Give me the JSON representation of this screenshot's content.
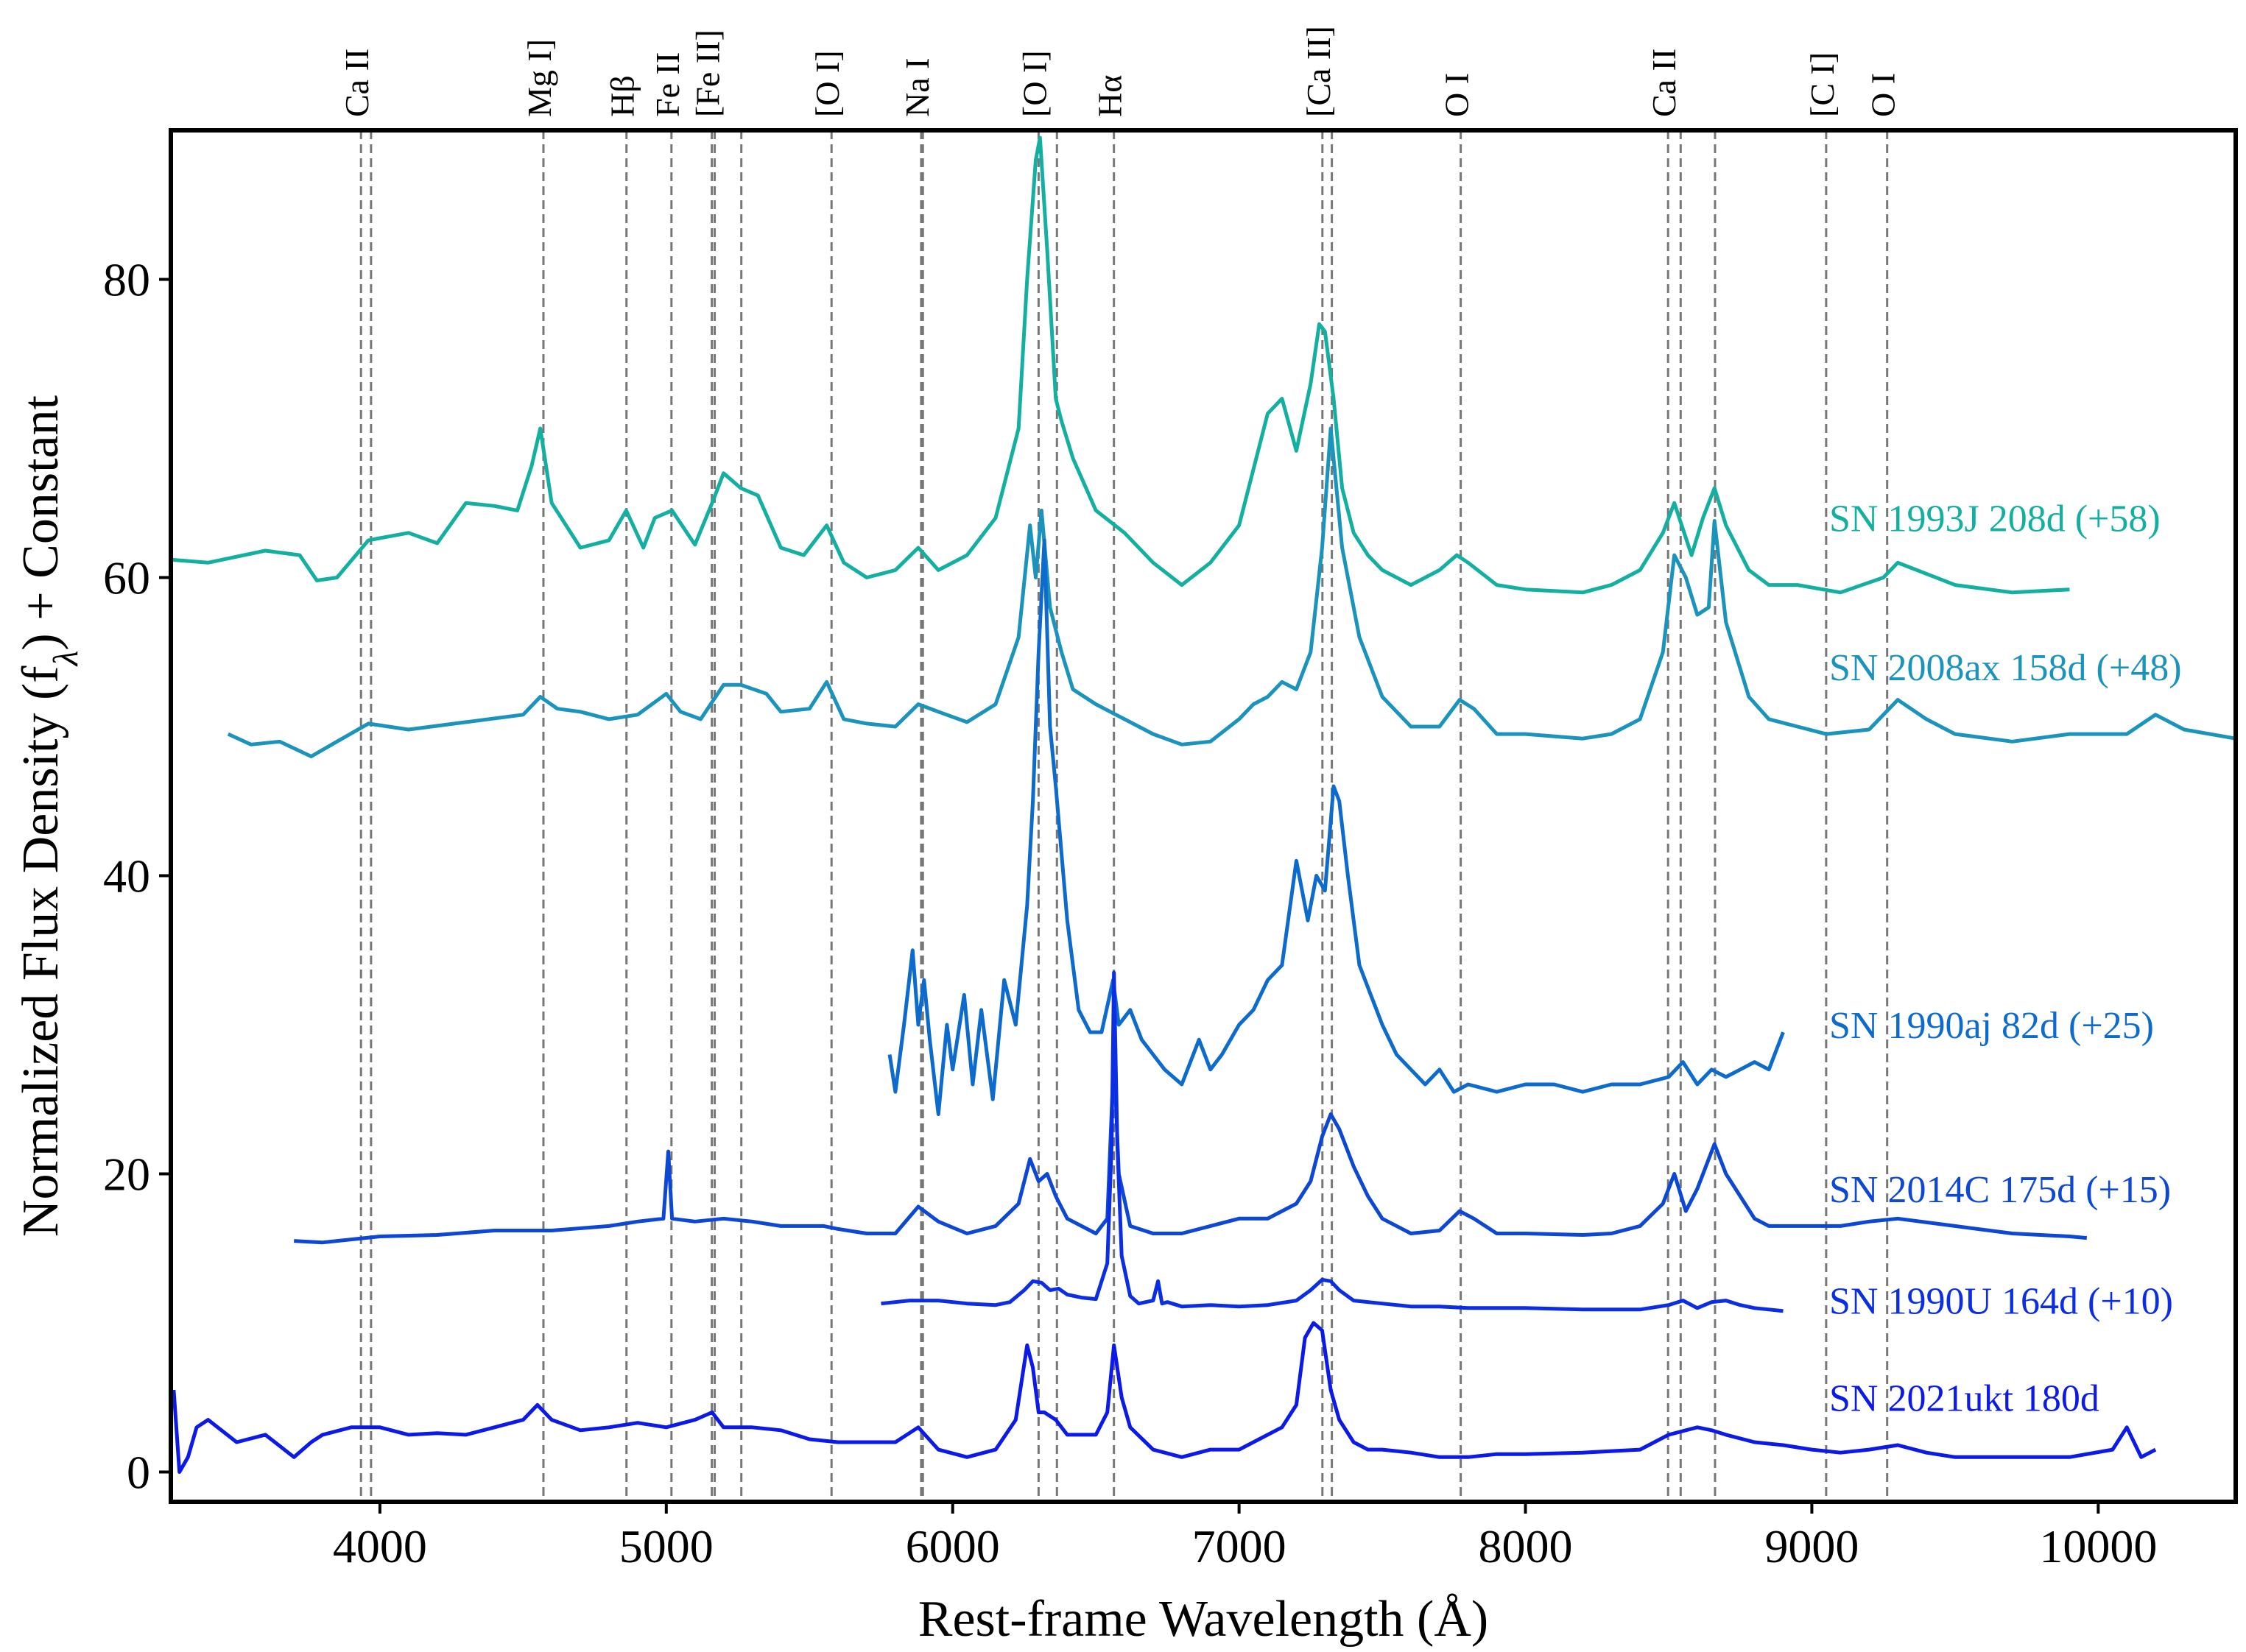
{
  "chart_data": {
    "type": "line",
    "title": "",
    "xlabel": "Rest-frame Wavelength (Å)",
    "ylabel": "Normalized Flux Density (f",
    "ylabel_sub": "λ",
    "ylabel_suffix": ") + Constant",
    "xlim": [
      3270,
      10480
    ],
    "ylim": [
      -2,
      90
    ],
    "xticks": [
      4000,
      5000,
      6000,
      7000,
      8000,
      9000,
      10000
    ],
    "yticks": [
      0,
      20,
      40,
      60,
      80
    ],
    "grid": false,
    "lines": [
      {
        "label": "Ca II",
        "x": [
          3934,
          3969
        ]
      },
      {
        "label": "Mg I]",
        "x": [
          4571
        ]
      },
      {
        "label": "Hβ",
        "x": [
          4861
        ]
      },
      {
        "label": "Fe II",
        "x": [
          5018,
          5169
        ]
      },
      {
        "label": "[Fe II]",
        "x": [
          5159,
          5262
        ]
      },
      {
        "label": "[O I]",
        "x": [
          5577
        ]
      },
      {
        "label": "Na I",
        "x": [
          5890,
          5896
        ]
      },
      {
        "label": "[O I]",
        "x": [
          6300,
          6364
        ]
      },
      {
        "label": "Hα",
        "x": [
          6563
        ]
      },
      {
        "label": "[Ca II]",
        "x": [
          7291,
          7324
        ]
      },
      {
        "label": "O I",
        "x": [
          7774
        ]
      },
      {
        "label": "Ca II",
        "x": [
          8498,
          8542,
          8662
        ]
      },
      {
        "label": "[C I]",
        "x": [
          9050
        ]
      },
      {
        "label": "O I",
        "x": [
          9263
        ]
      }
    ],
    "series": [
      {
        "name": "SN 1993J 208d (+58)",
        "color": "#13b0a2",
        "x": [
          3270,
          3400,
          3600,
          3720,
          3780,
          3850,
          3960,
          4100,
          4200,
          4300,
          4400,
          4480,
          4530,
          4560,
          4600,
          4650,
          4700,
          4800,
          4860,
          4920,
          4960,
          5020,
          5100,
          5160,
          5200,
          5260,
          5320,
          5400,
          5480,
          5560,
          5620,
          5700,
          5800,
          5880,
          5950,
          6050,
          6150,
          6230,
          6260,
          6290,
          6305,
          6330,
          6360,
          6380,
          6420,
          6500,
          6600,
          6700,
          6800,
          6900,
          7000,
          7100,
          7150,
          7200,
          7250,
          7280,
          7300,
          7330,
          7360,
          7400,
          7450,
          7500,
          7600,
          7700,
          7760,
          7800,
          7900,
          8000,
          8200,
          8300,
          8400,
          8480,
          8520,
          8580,
          8620,
          8660,
          8700,
          8780,
          8850,
          8950,
          9100,
          9250,
          9300,
          9500,
          9700,
          9900
        ],
        "y": [
          61.2,
          61.0,
          61.8,
          61.5,
          59.8,
          60.0,
          62.5,
          63.0,
          62.3,
          65.0,
          64.8,
          64.5,
          67.5,
          70.0,
          65.0,
          63.5,
          62.0,
          62.5,
          64.5,
          62.0,
          64.0,
          64.5,
          62.2,
          65.0,
          67.0,
          66.0,
          65.5,
          62.0,
          61.5,
          63.5,
          61.0,
          60.0,
          60.5,
          62.0,
          60.5,
          61.5,
          64.0,
          70.0,
          80.0,
          88.0,
          89.5,
          82.0,
          72.0,
          70.5,
          68.0,
          64.5,
          63.0,
          61.0,
          59.5,
          61.0,
          63.5,
          71.0,
          72.0,
          68.5,
          73.0,
          77.0,
          76.5,
          72.0,
          66.0,
          63.0,
          61.5,
          60.5,
          59.5,
          60.5,
          61.5,
          61.0,
          59.5,
          59.2,
          59.0,
          59.5,
          60.5,
          63.0,
          65.0,
          61.5,
          64.0,
          66.0,
          63.5,
          60.5,
          59.5,
          59.5,
          59.0,
          60.0,
          61.0,
          59.5,
          59.0,
          59.2
        ]
      },
      {
        "name": "SN 2008ax 158d (+48)",
        "color": "#1a93bd",
        "x": [
          3470,
          3550,
          3650,
          3760,
          3850,
          3960,
          4100,
          4300,
          4500,
          4560,
          4620,
          4700,
          4800,
          4900,
          5000,
          5050,
          5120,
          5200,
          5260,
          5350,
          5400,
          5500,
          5560,
          5620,
          5700,
          5800,
          5880,
          5950,
          6050,
          6150,
          6230,
          6270,
          6290,
          6310,
          6340,
          6380,
          6420,
          6500,
          6600,
          6700,
          6800,
          6900,
          7000,
          7050,
          7100,
          7150,
          7200,
          7250,
          7290,
          7320,
          7360,
          7420,
          7500,
          7600,
          7700,
          7770,
          7820,
          7900,
          8000,
          8200,
          8300,
          8400,
          8480,
          8520,
          8560,
          8600,
          8640,
          8660,
          8700,
          8780,
          8850,
          8950,
          9050,
          9200,
          9300,
          9400,
          9500,
          9700,
          9900,
          10100,
          10200,
          10300,
          10480
        ],
        "y": [
          49.5,
          48.8,
          49.0,
          48.0,
          49.0,
          50.2,
          49.8,
          50.3,
          50.8,
          52.0,
          51.2,
          51.0,
          50.5,
          50.8,
          52.2,
          51.0,
          50.5,
          52.8,
          52.8,
          52.2,
          51.0,
          51.2,
          53.0,
          50.5,
          50.2,
          50.0,
          51.5,
          51.0,
          50.3,
          51.5,
          56.0,
          63.5,
          60.0,
          64.5,
          58.0,
          55.0,
          52.5,
          51.5,
          50.5,
          49.5,
          48.8,
          49.0,
          50.5,
          51.5,
          52.0,
          53.0,
          52.5,
          55.0,
          62.0,
          70.0,
          62.0,
          56.0,
          52.0,
          50.0,
          50.0,
          51.8,
          51.2,
          49.5,
          49.5,
          49.2,
          49.5,
          50.5,
          55.0,
          61.5,
          60.0,
          57.5,
          58.0,
          63.8,
          57.0,
          52.0,
          50.5,
          50.0,
          49.5,
          49.8,
          51.8,
          50.5,
          49.5,
          49.0,
          49.5,
          49.5,
          50.8,
          49.8,
          49.2
        ]
      },
      {
        "name": "SN 1990aj 82d (+25)",
        "color": "#0d6bce",
        "x": [
          5780,
          5800,
          5830,
          5860,
          5880,
          5900,
          5920,
          5950,
          5980,
          6000,
          6040,
          6070,
          6100,
          6140,
          6180,
          6220,
          6260,
          6280,
          6300,
          6320,
          6340,
          6360,
          6400,
          6440,
          6480,
          6520,
          6560,
          6580,
          6620,
          6660,
          6700,
          6740,
          6800,
          6860,
          6900,
          6940,
          7000,
          7050,
          7100,
          7150,
          7200,
          7240,
          7270,
          7300,
          7330,
          7350,
          7380,
          7420,
          7460,
          7500,
          7550,
          7600,
          7650,
          7700,
          7750,
          7800,
          7900,
          8000,
          8100,
          8200,
          8300,
          8400,
          8500,
          8550,
          8600,
          8650,
          8700,
          8750,
          8800,
          8850,
          8900
        ],
        "y": [
          28.0,
          25.5,
          30.0,
          35.0,
          30.0,
          33.0,
          29.0,
          24.0,
          30.0,
          27.0,
          32.0,
          26.0,
          31.0,
          25.0,
          33.0,
          30.0,
          38.0,
          45.0,
          55.0,
          62.5,
          50.0,
          46.0,
          37.0,
          31.0,
          29.5,
          29.5,
          33.0,
          30.0,
          31.0,
          29.0,
          28.0,
          27.0,
          26.0,
          29.0,
          27.0,
          28.0,
          30.0,
          31.0,
          33.0,
          34.0,
          41.0,
          37.0,
          40.0,
          39.0,
          46.0,
          45.0,
          40.0,
          34.0,
          32.0,
          30.0,
          28.0,
          27.0,
          26.0,
          27.0,
          25.5,
          26.0,
          25.5,
          26.0,
          26.0,
          25.5,
          26.0,
          26.0,
          26.5,
          27.5,
          26.0,
          27.0,
          26.5,
          27.0,
          27.5,
          27.0,
          29.5
        ]
      },
      {
        "name": "SN 2014C 175d (+15)",
        "color": "#0c47d6",
        "x": [
          3700,
          3800,
          3900,
          4000,
          4200,
          4400,
          4600,
          4800,
          4900,
          4990,
          5007,
          5020,
          5100,
          5200,
          5300,
          5400,
          5550,
          5600,
          5700,
          5800,
          5880,
          5950,
          6050,
          6150,
          6230,
          6270,
          6300,
          6330,
          6360,
          6400,
          6450,
          6500,
          6540,
          6563,
          6580,
          6620,
          6700,
          6800,
          6900,
          7000,
          7100,
          7150,
          7200,
          7250,
          7290,
          7320,
          7350,
          7400,
          7450,
          7500,
          7600,
          7700,
          7770,
          7820,
          7900,
          8000,
          8200,
          8300,
          8400,
          8480,
          8520,
          8560,
          8600,
          8660,
          8700,
          8750,
          8800,
          8850,
          8950,
          9100,
          9200,
          9300,
          9500,
          9700,
          9900,
          9960
        ],
        "y": [
          15.5,
          15.4,
          15.6,
          15.8,
          15.9,
          16.2,
          16.2,
          16.5,
          16.8,
          17.0,
          21.5,
          17.0,
          16.8,
          17.0,
          16.8,
          16.5,
          16.5,
          16.3,
          16.0,
          16.0,
          17.8,
          16.8,
          16.0,
          16.5,
          18.0,
          21.0,
          19.5,
          20.0,
          18.5,
          17.0,
          16.5,
          16.0,
          17.0,
          28.0,
          20.0,
          16.5,
          16.0,
          16.0,
          16.5,
          17.0,
          17.0,
          17.5,
          18.0,
          19.5,
          22.5,
          24.0,
          23.0,
          20.5,
          18.5,
          17.0,
          16.0,
          16.2,
          17.5,
          17.0,
          16.0,
          16.0,
          15.9,
          16.0,
          16.5,
          18.0,
          20.0,
          17.5,
          19.0,
          22.0,
          20.0,
          18.5,
          17.0,
          16.5,
          16.5,
          16.5,
          16.8,
          17.0,
          16.5,
          16.0,
          15.8,
          15.7
        ]
      },
      {
        "name": "SN 1990U 164d (+10)",
        "color": "#0b2ee4",
        "x": [
          5750,
          5850,
          5950,
          6050,
          6150,
          6200,
          6250,
          6280,
          6310,
          6340,
          6370,
          6400,
          6450,
          6500,
          6540,
          6555,
          6563,
          6575,
          6590,
          6620,
          6650,
          6700,
          6717,
          6731,
          6750,
          6800,
          6900,
          7000,
          7100,
          7200,
          7250,
          7290,
          7320,
          7350,
          7400,
          7500,
          7600,
          7700,
          7800,
          7900,
          8000,
          8200,
          8400,
          8500,
          8550,
          8600,
          8650,
          8700,
          8750,
          8800,
          8900
        ],
        "y": [
          11.3,
          11.5,
          11.5,
          11.3,
          11.2,
          11.4,
          12.2,
          12.8,
          12.7,
          12.2,
          12.3,
          11.9,
          11.7,
          11.6,
          14.0,
          22.0,
          33.5,
          22.0,
          14.5,
          11.8,
          11.3,
          11.5,
          12.8,
          11.3,
          11.4,
          11.1,
          11.2,
          11.1,
          11.2,
          11.5,
          12.2,
          12.9,
          12.8,
          12.2,
          11.5,
          11.3,
          11.1,
          11.1,
          11.0,
          11.0,
          11.0,
          10.9,
          10.9,
          11.2,
          11.5,
          11.0,
          11.4,
          11.5,
          11.2,
          11.0,
          10.8
        ]
      },
      {
        "name": "SN 2021ukt 180d",
        "color": "#0b1ae8",
        "x": [
          3280,
          3300,
          3330,
          3360,
          3400,
          3500,
          3600,
          3700,
          3760,
          3800,
          3900,
          4000,
          4100,
          4200,
          4300,
          4400,
          4500,
          4550,
          4600,
          4700,
          4800,
          4900,
          5000,
          5100,
          5160,
          5200,
          5300,
          5400,
          5500,
          5600,
          5700,
          5800,
          5880,
          5950,
          6050,
          6150,
          6220,
          6260,
          6280,
          6300,
          6320,
          6360,
          6400,
          6450,
          6500,
          6540,
          6563,
          6590,
          6620,
          6700,
          6800,
          6900,
          7000,
          7100,
          7150,
          7200,
          7230,
          7260,
          7290,
          7320,
          7350,
          7400,
          7450,
          7500,
          7600,
          7700,
          7800,
          7900,
          8000,
          8200,
          8400,
          8500,
          8600,
          8650,
          8700,
          8800,
          8900,
          9000,
          9100,
          9200,
          9300,
          9400,
          9500,
          9700,
          9900,
          10050,
          10100,
          10150,
          10200
        ],
        "y": [
          5.5,
          0.0,
          1.0,
          3.0,
          3.5,
          2.0,
          2.5,
          1.0,
          2.0,
          2.5,
          3.0,
          3.0,
          2.5,
          2.6,
          2.5,
          3.0,
          3.5,
          4.5,
          3.5,
          2.8,
          3.0,
          3.3,
          3.0,
          3.5,
          4.0,
          3.0,
          3.0,
          2.8,
          2.2,
          2.0,
          2.0,
          2.0,
          3.0,
          1.5,
          1.0,
          1.5,
          3.5,
          8.5,
          7.0,
          4.0,
          4.0,
          3.5,
          2.5,
          2.5,
          2.5,
          4.0,
          8.5,
          5.0,
          3.0,
          1.5,
          1.0,
          1.5,
          1.5,
          2.5,
          3.0,
          4.5,
          9.0,
          10.0,
          9.5,
          5.5,
          3.5,
          2.0,
          1.5,
          1.5,
          1.3,
          1.0,
          1.0,
          1.2,
          1.2,
          1.3,
          1.5,
          2.5,
          3.0,
          2.8,
          2.5,
          2.0,
          1.8,
          1.5,
          1.3,
          1.5,
          1.8,
          1.3,
          1.0,
          1.0,
          1.0,
          1.5,
          3.0,
          1.0,
          1.5
        ]
      }
    ]
  }
}
